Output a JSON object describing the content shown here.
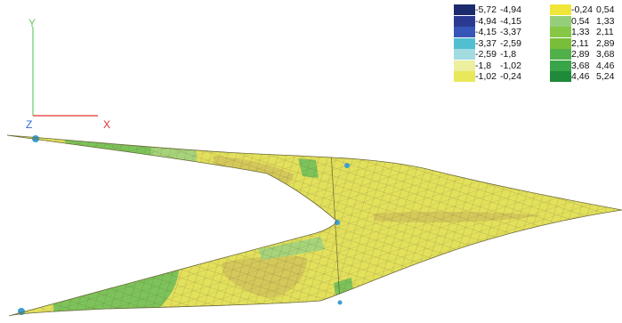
{
  "axes": {
    "labels": {
      "y": "Y",
      "z": "Z",
      "x": "X"
    },
    "colors": {
      "y": "#66cc66",
      "z": "#2c6ed5",
      "x": "#e03030"
    }
  },
  "legend": {
    "ranges": [
      {
        "from": "-5,72",
        "to": "-4,94",
        "color": "#1c2a6e"
      },
      {
        "from": "-4,94",
        "to": "-4,15",
        "color": "#2a3a92"
      },
      {
        "from": "-4,15",
        "to": "-3,37",
        "color": "#3656b8"
      },
      {
        "from": "-3,37",
        "to": "-2,59",
        "color": "#52bfd0"
      },
      {
        "from": "-2,59",
        "to": "-1,8",
        "color": "#a2dbe0"
      },
      {
        "from": "-1,8",
        "to": "-1,02",
        "color": "#ecef9e"
      },
      {
        "from": "-1,02",
        "to": "-0,24",
        "color": "#e8e85a"
      },
      {
        "from": "-0,24",
        "to": "0,54",
        "color": "#f0e63a"
      },
      {
        "from": "0,54",
        "to": "1,33",
        "color": "#96cf7a"
      },
      {
        "from": "1,33",
        "to": "2,11",
        "color": "#86c846"
      },
      {
        "from": "2,11",
        "to": "2,89",
        "color": "#78be38"
      },
      {
        "from": "2,89",
        "to": "3,68",
        "color": "#52b04a"
      },
      {
        "from": "3,68",
        "to": "4,46",
        "color": "#3aa548"
      },
      {
        "from": "4,46",
        "to": "5,24",
        "color": "#1f8a3a"
      }
    ]
  },
  "mesh": {
    "base_color": "#e3e05c",
    "line_color": "#4a4a2a",
    "green_color": "#7dc35a",
    "light_green_color": "#a7d47a",
    "ochre_color": "#d4c85a",
    "blue_color": "#3b9fd0"
  }
}
